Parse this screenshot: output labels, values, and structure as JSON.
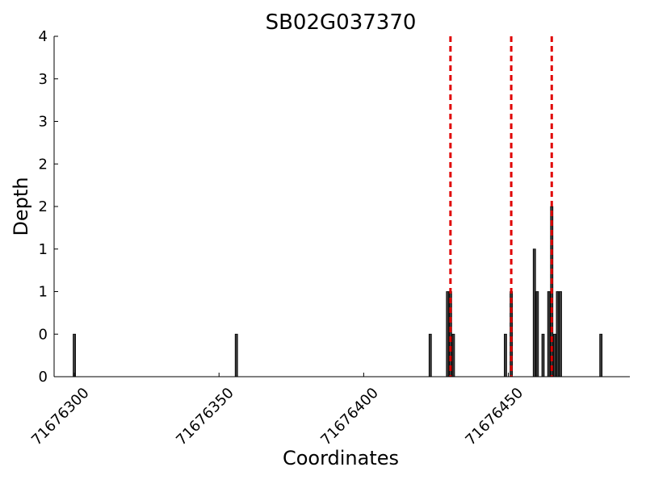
{
  "chart_data": {
    "type": "bar",
    "title": "SB02G037370",
    "xlabel": "Coordinates",
    "ylabel": "Depth",
    "xlim": [
      71676293,
      71676492
    ],
    "ylim": [
      0,
      4
    ],
    "grid": false,
    "x_ticks": [
      {
        "value": 71676300,
        "label": "71676300"
      },
      {
        "value": 71676350,
        "label": "71676350"
      },
      {
        "value": 71676400,
        "label": "71676400"
      },
      {
        "value": 71676450,
        "label": "71676450"
      }
    ],
    "y_ticks": [
      {
        "value": 0,
        "label": "0"
      },
      {
        "value": 0.5,
        "label": "0"
      },
      {
        "value": 1,
        "label": "1"
      },
      {
        "value": 1.5,
        "label": "1"
      },
      {
        "value": 2,
        "label": "2"
      },
      {
        "value": 2.5,
        "label": "2"
      },
      {
        "value": 3,
        "label": "3"
      },
      {
        "value": 3.5,
        "label": "3"
      },
      {
        "value": 4,
        "label": "4"
      }
    ],
    "bars": {
      "color": "#3a3a3a",
      "edge_color": "#000000",
      "x": [
        71676300,
        71676356,
        71676423,
        71676429,
        71676430,
        71676431,
        71676449,
        71676451,
        71676459,
        71676460,
        71676462,
        71676464,
        71676465,
        71676466,
        71676467,
        71676468,
        71676482
      ],
      "values": [
        0.5,
        0.5,
        0.5,
        1.0,
        1.0,
        0.5,
        0.5,
        1.0,
        1.5,
        1.0,
        0.5,
        1.0,
        2.0,
        0.5,
        1.0,
        1.0,
        0.5
      ]
    },
    "markers": {
      "color": "#e00000",
      "style": "dashed",
      "x": [
        71676430,
        71676451,
        71676465
      ]
    }
  }
}
